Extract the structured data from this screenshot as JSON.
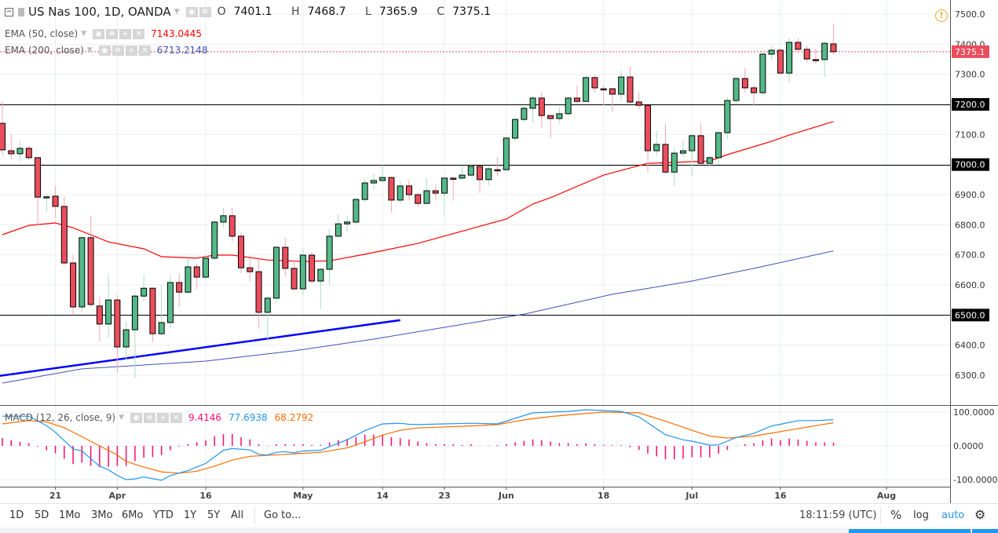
{
  "header": {
    "symbol": "US Nas 100, 1D, OANDA",
    "ohlc": [
      {
        "k": "O",
        "v": "7401.1"
      },
      {
        "k": "H",
        "v": "7468.7"
      },
      {
        "k": "L",
        "v": "7365.9"
      },
      {
        "k": "C",
        "v": "7375.1"
      }
    ],
    "alert_icon": "exclamation-circle-icon"
  },
  "indicators": {
    "ema50": {
      "label": "EMA (50, close)",
      "value": "7143.0445",
      "color": "#ff0000"
    },
    "ema200": {
      "label": "EMA (200, close)",
      "value": "6713.2148",
      "color": "#3f51b5"
    },
    "macd": {
      "label": "MACD (12, 26, close, 9)",
      "hist_value": "9.4146",
      "macd_value": "77.6938",
      "signal_value": "68.2792",
      "hist_color": "#ff0a6c",
      "macd_color": "#2196f3",
      "signal_color": "#ff6d00"
    }
  },
  "colors": {
    "up": "#53b987",
    "down": "#eb4d5c",
    "grid": "#e9eff3",
    "trendline": "#0000ff",
    "last_price": "#eb4d5c"
  },
  "price_axis": {
    "ticks": [
      "7500.0",
      "7400.0",
      "7300.0",
      "7200.0",
      "7100.0",
      "7000.0",
      "6900.0",
      "6800.0",
      "6700.0",
      "6600.0",
      "6500.0",
      "6400.0",
      "6300.0"
    ],
    "last_price": "7375.1",
    "hlines": [
      "7200.0",
      "7000.0",
      "6500.0"
    ]
  },
  "macd_axis": {
    "ticks": [
      "100.0000",
      "0.0000",
      "-100.0000"
    ]
  },
  "time_axis": {
    "ticks": [
      {
        "date": "2018-03-21",
        "label": "21"
      },
      {
        "date": "2018-04-02",
        "label": "Apr"
      },
      {
        "date": "2018-04-16",
        "label": "16"
      },
      {
        "date": "2018-05-01",
        "label": "May"
      },
      {
        "date": "2018-05-14",
        "label": "14"
      },
      {
        "date": "2018-05-23",
        "label": "23"
      },
      {
        "date": "2018-06-01",
        "label": "Jun"
      },
      {
        "date": "2018-06-18",
        "label": "18"
      },
      {
        "date": "2018-07-02",
        "label": "Jul"
      },
      {
        "date": "2018-07-16",
        "label": "16"
      },
      {
        "date": "2018-08-01",
        "label": "Aug"
      }
    ]
  },
  "chart_data": {
    "type": "candlestick",
    "price_range": [
      6250,
      7520
    ],
    "candles_fields": [
      "date",
      "open",
      "high",
      "low",
      "close"
    ],
    "candles": [
      [
        "2018-03-13",
        7137,
        7210,
        7030,
        7049
      ],
      [
        "2018-03-14",
        7046,
        7101,
        7017,
        7036
      ],
      [
        "2018-03-15",
        7036,
        7078,
        7012,
        7054
      ],
      [
        "2018-03-16",
        7054,
        7062,
        7015,
        7023
      ],
      [
        "2018-03-19",
        7023,
        7023,
        6798,
        6892
      ],
      [
        "2018-03-20",
        6892,
        6905,
        6842,
        6893
      ],
      [
        "2018-03-21",
        6895,
        6929,
        6823,
        6861
      ],
      [
        "2018-03-22",
        6861,
        6895,
        6665,
        6673
      ],
      [
        "2018-03-23",
        6673,
        6700,
        6500,
        6527
      ],
      [
        "2018-03-26",
        6527,
        6762,
        6510,
        6757
      ],
      [
        "2018-03-27",
        6757,
        6830,
        6527,
        6535
      ],
      [
        "2018-03-28",
        6530,
        6560,
        6412,
        6470
      ],
      [
        "2018-03-29",
        6470,
        6634,
        6425,
        6550
      ],
      [
        "2018-04-02",
        6550,
        6566,
        6308,
        6394
      ],
      [
        "2018-04-03",
        6394,
        6477,
        6350,
        6451
      ],
      [
        "2018-04-04",
        6451,
        6575,
        6290,
        6563
      ],
      [
        "2018-04-05",
        6563,
        6634,
        6545,
        6589
      ],
      [
        "2018-04-06",
        6589,
        6592,
        6410,
        6438
      ],
      [
        "2018-04-09",
        6438,
        6600,
        6432,
        6475
      ],
      [
        "2018-04-10",
        6475,
        6634,
        6455,
        6608
      ],
      [
        "2018-04-11",
        6608,
        6638,
        6527,
        6576
      ],
      [
        "2018-04-12",
        6576,
        6690,
        6570,
        6660
      ],
      [
        "2018-04-13",
        6660,
        6671,
        6585,
        6626
      ],
      [
        "2018-04-16",
        6626,
        6697,
        6620,
        6689
      ],
      [
        "2018-04-17",
        6689,
        6815,
        6683,
        6809
      ],
      [
        "2018-04-18",
        6809,
        6856,
        6790,
        6830
      ],
      [
        "2018-04-19",
        6830,
        6856,
        6745,
        6762
      ],
      [
        "2018-04-20",
        6762,
        6774,
        6640,
        6657
      ],
      [
        "2018-04-23",
        6657,
        6690,
        6610,
        6644
      ],
      [
        "2018-04-24",
        6644,
        6683,
        6454,
        6509
      ],
      [
        "2018-04-25",
        6509,
        6560,
        6415,
        6556
      ],
      [
        "2018-04-26",
        6556,
        6733,
        6540,
        6725
      ],
      [
        "2018-04-27",
        6725,
        6755,
        6630,
        6655
      ],
      [
        "2018-04-30",
        6655,
        6683,
        6580,
        6587
      ],
      [
        "2018-05-01",
        6587,
        6720,
        6565,
        6699
      ],
      [
        "2018-05-02",
        6699,
        6710,
        6605,
        6613
      ],
      [
        "2018-05-03",
        6613,
        6655,
        6520,
        6652
      ],
      [
        "2018-05-04",
        6652,
        6785,
        6600,
        6762
      ],
      [
        "2018-05-07",
        6762,
        6835,
        6760,
        6803
      ],
      [
        "2018-05-08",
        6803,
        6830,
        6775,
        6809
      ],
      [
        "2018-05-09",
        6809,
        6890,
        6800,
        6884
      ],
      [
        "2018-05-10",
        6884,
        6955,
        6875,
        6939
      ],
      [
        "2018-05-11",
        6939,
        6970,
        6915,
        6947
      ],
      [
        "2018-05-14",
        6947,
        6998,
        6940,
        6957
      ],
      [
        "2018-05-15",
        6957,
        6960,
        6840,
        6882
      ],
      [
        "2018-05-16",
        6882,
        6945,
        6870,
        6929
      ],
      [
        "2018-05-17",
        6929,
        6950,
        6880,
        6900
      ],
      [
        "2018-05-18",
        6900,
        6905,
        6858,
        6871
      ],
      [
        "2018-05-21",
        6871,
        6955,
        6868,
        6913
      ],
      [
        "2018-05-22",
        6913,
        6935,
        6880,
        6905
      ],
      [
        "2018-05-23",
        6905,
        6958,
        6826,
        6955
      ],
      [
        "2018-05-24",
        6955,
        6958,
        6880,
        6953
      ],
      [
        "2018-05-25",
        6955,
        6997,
        6948,
        6965
      ],
      [
        "2018-05-28",
        6965,
        7003,
        6960,
        6994
      ],
      [
        "2018-05-29",
        6994,
        6994,
        6905,
        6950
      ],
      [
        "2018-05-30",
        6950,
        6995,
        6930,
        6986
      ],
      [
        "2018-05-31",
        6983,
        7025,
        6960,
        6981
      ],
      [
        "2018-06-01",
        6983,
        7093,
        6980,
        7088
      ],
      [
        "2018-06-04",
        7088,
        7158,
        7077,
        7150
      ],
      [
        "2018-06-05",
        7150,
        7195,
        7140,
        7187
      ],
      [
        "2018-06-06",
        7187,
        7229,
        7138,
        7221
      ],
      [
        "2018-06-07",
        7221,
        7242,
        7122,
        7163
      ],
      [
        "2018-06-08",
        7163,
        7163,
        7088,
        7153
      ],
      [
        "2018-06-11",
        7153,
        7190,
        7138,
        7169
      ],
      [
        "2018-06-12",
        7169,
        7225,
        7160,
        7221
      ],
      [
        "2018-06-13",
        7221,
        7262,
        7205,
        7210
      ],
      [
        "2018-06-14",
        7210,
        7298,
        7208,
        7289
      ],
      [
        "2018-06-15",
        7289,
        7298,
        7240,
        7255
      ],
      [
        "2018-06-18",
        7252,
        7263,
        7197,
        7250
      ],
      [
        "2018-06-19",
        7252,
        7255,
        7175,
        7234
      ],
      [
        "2018-06-20",
        7234,
        7312,
        7212,
        7291
      ],
      [
        "2018-06-21",
        7291,
        7325,
        7205,
        7208
      ],
      [
        "2018-06-22",
        7208,
        7240,
        7185,
        7197
      ],
      [
        "2018-06-25",
        7197,
        7197,
        6975,
        7046
      ],
      [
        "2018-06-26",
        7046,
        7112,
        7030,
        7067
      ],
      [
        "2018-06-27",
        7067,
        7135,
        6970,
        6975
      ],
      [
        "2018-06-28",
        6975,
        7056,
        6930,
        7038
      ],
      [
        "2018-06-29",
        7038,
        7080,
        7025,
        7046
      ],
      [
        "2018-07-02",
        7046,
        7100,
        6963,
        7096
      ],
      [
        "2018-07-03",
        7096,
        7140,
        7004,
        7004
      ],
      [
        "2018-07-04",
        7004,
        7030,
        6995,
        7023
      ],
      [
        "2018-07-05",
        7023,
        7110,
        7000,
        7106
      ],
      [
        "2018-07-06",
        7106,
        7225,
        7085,
        7213
      ],
      [
        "2018-07-09",
        7213,
        7290,
        7200,
        7286
      ],
      [
        "2018-07-10",
        7286,
        7320,
        7240,
        7255
      ],
      [
        "2018-07-11",
        7255,
        7265,
        7195,
        7239
      ],
      [
        "2018-07-12",
        7239,
        7372,
        7230,
        7367
      ],
      [
        "2018-07-13",
        7367,
        7395,
        7345,
        7380
      ],
      [
        "2018-07-16",
        7380,
        7387,
        7300,
        7304
      ],
      [
        "2018-07-17",
        7304,
        7420,
        7275,
        7406
      ],
      [
        "2018-07-18",
        7406,
        7420,
        7370,
        7383
      ],
      [
        "2018-07-19",
        7383,
        7395,
        7340,
        7351
      ],
      [
        "2018-07-20",
        7349,
        7385,
        7335,
        7347
      ],
      [
        "2018-07-23",
        7349,
        7410,
        7290,
        7403
      ],
      [
        "2018-07-24",
        7401.1,
        7468.7,
        7365.9,
        7375.1
      ]
    ],
    "ema50": [
      [
        "2018-03-13",
        6767
      ],
      [
        "2018-03-16",
        6798
      ],
      [
        "2018-03-21",
        6806
      ],
      [
        "2018-03-23",
        6790
      ],
      [
        "2018-03-29",
        6743
      ],
      [
        "2018-04-05",
        6720
      ],
      [
        "2018-04-09",
        6694
      ],
      [
        "2018-04-13",
        6689
      ],
      [
        "2018-04-17",
        6699
      ],
      [
        "2018-04-19",
        6699
      ],
      [
        "2018-04-25",
        6683
      ],
      [
        "2018-05-01",
        6678
      ],
      [
        "2018-05-04",
        6680
      ],
      [
        "2018-05-10",
        6702
      ],
      [
        "2018-05-18",
        6738
      ],
      [
        "2018-06-01",
        6819
      ],
      [
        "2018-06-06",
        6869
      ],
      [
        "2018-06-08",
        6890
      ],
      [
        "2018-06-18",
        6965
      ],
      [
        "2018-06-25",
        7004
      ],
      [
        "2018-07-04",
        7012
      ],
      [
        "2018-07-06",
        7033
      ],
      [
        "2018-07-13",
        7077
      ],
      [
        "2018-07-17",
        7098
      ],
      [
        "2018-07-24",
        7143.0445
      ]
    ],
    "ema200": [
      [
        "2018-03-13",
        6274
      ],
      [
        "2018-03-26",
        6321
      ],
      [
        "2018-04-16",
        6347
      ],
      [
        "2018-04-30",
        6381
      ],
      [
        "2018-05-11",
        6420
      ],
      [
        "2018-06-05",
        6503
      ],
      [
        "2018-06-19",
        6569
      ],
      [
        "2018-07-02",
        6613
      ],
      [
        "2018-07-11",
        6655
      ],
      [
        "2018-07-24",
        6713.2148
      ]
    ],
    "trendline": [
      [
        "2018-03-13",
        6298
      ],
      [
        "2018-05-16",
        6483
      ]
    ],
    "macd_range": [
      -120,
      115
    ],
    "macd_hist": [
      23,
      17,
      12,
      8,
      -2,
      -13,
      -22,
      -38,
      -54,
      -50,
      -59,
      -63,
      -62,
      -60,
      -59,
      -45,
      -35,
      -33,
      -27,
      -13,
      -2,
      5,
      10,
      17,
      28,
      35,
      35,
      26,
      19,
      5,
      1,
      5,
      5,
      4,
      5,
      3,
      3,
      10,
      17,
      21,
      26,
      33,
      33,
      33,
      26,
      23,
      19,
      13,
      8,
      5,
      5,
      5,
      3,
      5,
      1,
      1,
      0,
      5,
      10,
      15,
      19,
      17,
      13,
      8,
      8,
      5,
      8,
      5,
      3,
      0,
      0,
      -4,
      -12,
      -23,
      -31,
      -40,
      -40,
      -38,
      -34,
      -34,
      -34,
      -23,
      -12,
      1,
      5,
      8,
      17,
      22,
      17,
      22,
      19,
      15,
      10,
      10,
      9.4146
    ],
    "macd_line": [
      [
        "2018-03-13",
        88
      ],
      [
        "2018-03-16",
        88
      ],
      [
        "2018-03-20",
        60
      ],
      [
        "2018-03-21",
        40
      ],
      [
        "2018-03-23",
        -9
      ],
      [
        "2018-03-26",
        -15
      ],
      [
        "2018-03-27",
        -38
      ],
      [
        "2018-03-28",
        -60
      ],
      [
        "2018-03-29",
        -71
      ],
      [
        "2018-04-02",
        -88
      ],
      [
        "2018-04-03",
        -100
      ],
      [
        "2018-04-04",
        -98
      ],
      [
        "2018-04-05",
        -92
      ],
      [
        "2018-04-09",
        -102
      ],
      [
        "2018-04-10",
        -88
      ],
      [
        "2018-04-12",
        -73
      ],
      [
        "2018-04-16",
        -52
      ],
      [
        "2018-04-18",
        -13
      ],
      [
        "2018-04-19",
        -8
      ],
      [
        "2018-04-23",
        -12
      ],
      [
        "2018-04-24",
        -25
      ],
      [
        "2018-04-25",
        -27
      ],
      [
        "2018-04-26",
        -19
      ],
      [
        "2018-04-27",
        -17
      ],
      [
        "2018-04-30",
        -21
      ],
      [
        "2018-05-01",
        -15
      ],
      [
        "2018-05-03",
        -13
      ],
      [
        "2018-05-07",
        8
      ],
      [
        "2018-05-08",
        18
      ],
      [
        "2018-05-10",
        45
      ],
      [
        "2018-05-14",
        65
      ],
      [
        "2018-05-16",
        67
      ],
      [
        "2018-05-17",
        64
      ],
      [
        "2018-05-18",
        63
      ],
      [
        "2018-05-23",
        65
      ],
      [
        "2018-05-28",
        67
      ],
      [
        "2018-05-31",
        65
      ],
      [
        "2018-06-06",
        98
      ],
      [
        "2018-06-12",
        102
      ],
      [
        "2018-06-14",
        107
      ],
      [
        "2018-06-20",
        102
      ],
      [
        "2018-06-22",
        86
      ],
      [
        "2018-06-27",
        33
      ],
      [
        "2018-06-29",
        18
      ],
      [
        "2018-07-02",
        14
      ],
      [
        "2018-07-04",
        2
      ],
      [
        "2018-07-05",
        3
      ],
      [
        "2018-07-09",
        25
      ],
      [
        "2018-07-11",
        37
      ],
      [
        "2018-07-13",
        59
      ],
      [
        "2018-07-16",
        64
      ],
      [
        "2018-07-18",
        75
      ],
      [
        "2018-07-20",
        75
      ],
      [
        "2018-07-24",
        77.6938
      ]
    ],
    "signal_line": [
      [
        "2018-03-13",
        65
      ],
      [
        "2018-03-16",
        75
      ],
      [
        "2018-03-20",
        71
      ],
      [
        "2018-03-22",
        54
      ],
      [
        "2018-03-26",
        27
      ],
      [
        "2018-03-28",
        0
      ],
      [
        "2018-04-02",
        -27
      ],
      [
        "2018-04-03",
        -46
      ],
      [
        "2018-04-05",
        -63
      ],
      [
        "2018-04-09",
        -77
      ],
      [
        "2018-04-11",
        -81
      ],
      [
        "2018-04-13",
        -75
      ],
      [
        "2018-04-17",
        -60
      ],
      [
        "2018-04-19",
        -42
      ],
      [
        "2018-04-23",
        -31
      ],
      [
        "2018-04-27",
        -25
      ],
      [
        "2018-05-01",
        -22
      ],
      [
        "2018-05-03",
        -19
      ],
      [
        "2018-05-08",
        -6
      ],
      [
        "2018-05-10",
        12
      ],
      [
        "2018-05-14",
        32
      ],
      [
        "2018-05-16",
        46
      ],
      [
        "2018-05-18",
        53
      ],
      [
        "2018-05-28",
        59
      ],
      [
        "2018-05-31",
        63
      ],
      [
        "2018-06-05",
        77
      ],
      [
        "2018-06-08",
        87
      ],
      [
        "2018-06-13",
        94
      ],
      [
        "2018-06-18",
        100
      ],
      [
        "2018-06-22",
        98
      ],
      [
        "2018-06-27",
        73
      ],
      [
        "2018-07-02",
        46
      ],
      [
        "2018-07-04",
        29
      ],
      [
        "2018-07-06",
        23
      ],
      [
        "2018-07-11",
        29
      ],
      [
        "2018-07-16",
        42
      ],
      [
        "2018-07-20",
        60
      ],
      [
        "2018-07-24",
        68.2792
      ]
    ]
  },
  "toolbar": {
    "ranges": [
      "1D",
      "5D",
      "1Mo",
      "3Mo",
      "6Mo",
      "YTD",
      "1Y",
      "5Y",
      "All"
    ],
    "goto": "Go to...",
    "clock": "18:11:59 (UTC)",
    "percent": "%",
    "log": "log",
    "auto": "auto",
    "settings_icon": "gear-icon"
  }
}
